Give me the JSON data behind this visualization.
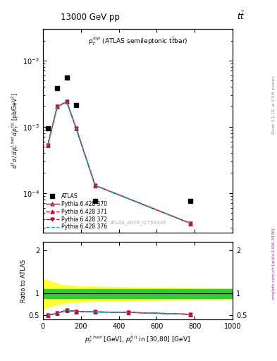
{
  "title_left": "13000 GeV pp",
  "title_right": "tt",
  "annotation": "p_T^{top} (ATLAS semileptonic ttbar)",
  "watermark": "ATLAS_2019_I1750330",
  "right_label_top": "Rivet 3.1.10, ≥ 2.5M events",
  "right_label_bot": "mcplots.cern.ch [arXiv:1306.3436]",
  "atlas_x": [
    25,
    75,
    125,
    175,
    275,
    775
  ],
  "atlas_y": [
    0.00095,
    0.0038,
    0.0055,
    0.0021,
    7.5e-05,
    7.5e-05
  ],
  "py370_x": [
    25,
    75,
    125,
    175,
    275,
    775
  ],
  "py370_y": [
    0.00052,
    0.002,
    0.0024,
    0.00095,
    0.00013,
    3.5e-05
  ],
  "py371_x": [
    25,
    75,
    125,
    175,
    275,
    775
  ],
  "py371_y": [
    0.00052,
    0.002,
    0.0024,
    0.00095,
    0.00013,
    3.5e-05
  ],
  "py372_x": [
    25,
    75,
    125,
    175,
    275,
    775
  ],
  "py372_y": [
    0.00052,
    0.002,
    0.0024,
    0.00095,
    0.00013,
    3.5e-05
  ],
  "py376_x": [
    25,
    75,
    125,
    175,
    275,
    775
  ],
  "py376_y": [
    0.00052,
    0.002,
    0.0024,
    0.00095,
    0.00013,
    3.5e-05
  ],
  "ratio_x": [
    25,
    75,
    125,
    175,
    275,
    450,
    775
  ],
  "ratio_py370": [
    0.495,
    0.545,
    0.615,
    0.585,
    0.575,
    0.565,
    0.52
  ],
  "ratio_py371": [
    0.495,
    0.545,
    0.615,
    0.585,
    0.575,
    0.565,
    0.52
  ],
  "ratio_py372": [
    0.495,
    0.545,
    0.615,
    0.585,
    0.575,
    0.565,
    0.52
  ],
  "ratio_py376": [
    0.495,
    0.545,
    0.615,
    0.585,
    0.575,
    0.565,
    0.52
  ],
  "yellow_x": [
    0,
    50,
    100,
    200,
    500,
    1000
  ],
  "yellow_lo": [
    0.65,
    0.72,
    0.78,
    0.82,
    0.85,
    0.87
  ],
  "yellow_hi": [
    1.35,
    1.27,
    1.2,
    1.17,
    1.14,
    1.12
  ],
  "green_lo": 0.9,
  "green_hi": 1.1,
  "color_atlas": "#000000",
  "color_py": "#cc0033",
  "color_py376": "#00bbbb",
  "color_green": "#33cc33",
  "color_yellow": "#ffff33",
  "xlim": [
    0,
    1000
  ],
  "ylim_main": [
    2.5e-05,
    0.03
  ],
  "ylim_ratio": [
    0.4,
    2.2
  ],
  "ratio_yticks": [
    0.5,
    1.0,
    2.0
  ],
  "ratio_yticklabels": [
    "0.5",
    "1",
    "2"
  ]
}
